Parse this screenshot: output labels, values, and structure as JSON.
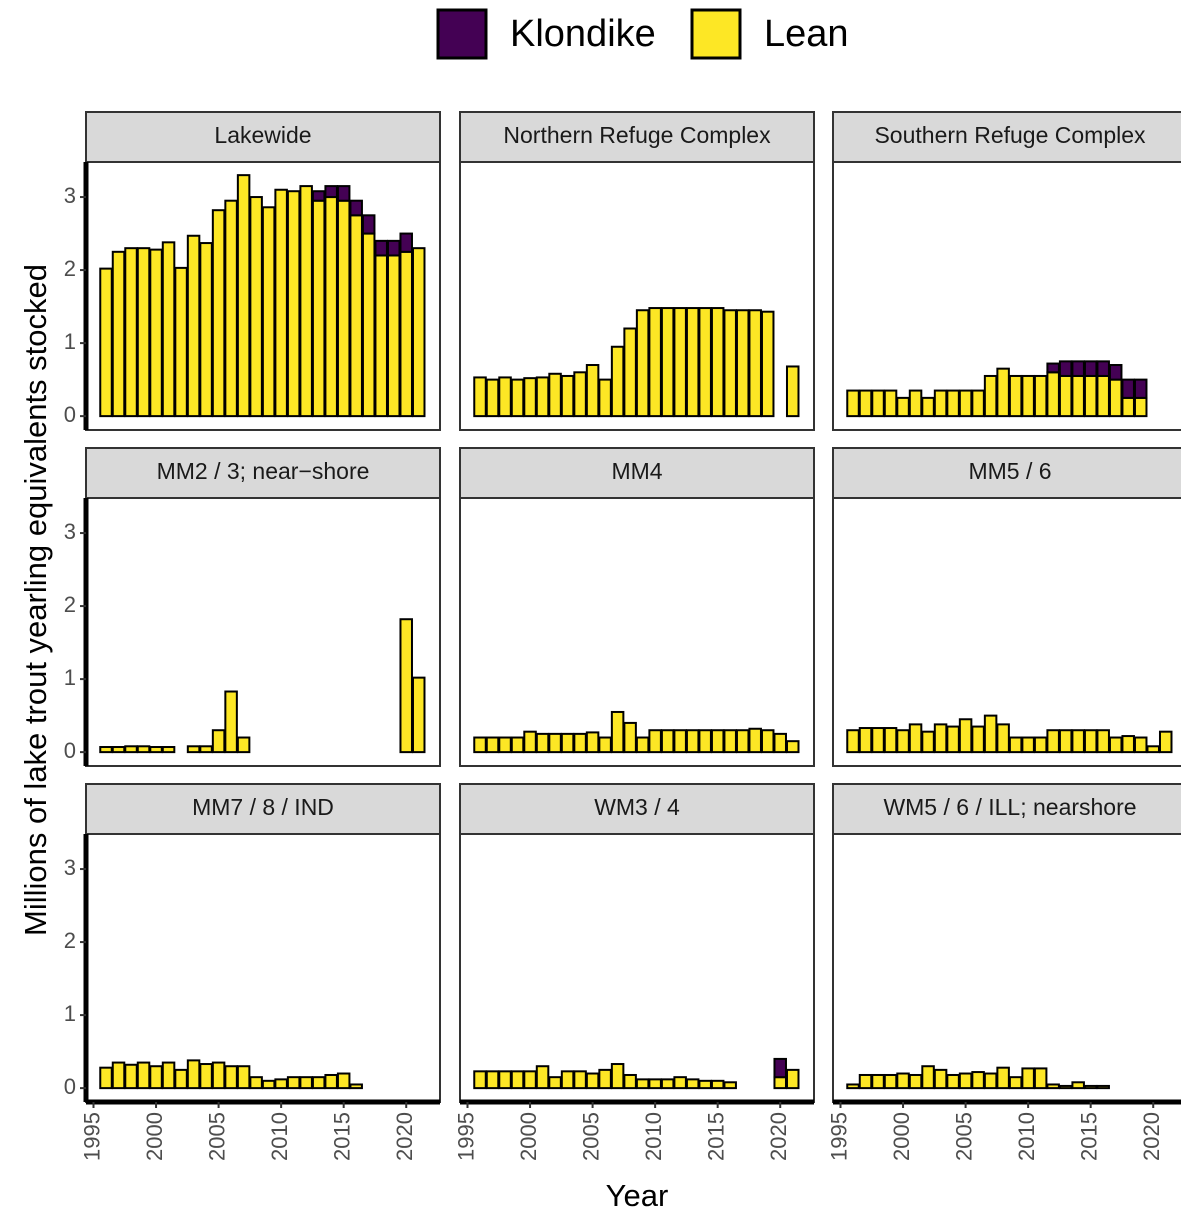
{
  "chart_data": {
    "type": "bar",
    "stacked": true,
    "y_label": "Millions of lake trout yearling equivalents stocked",
    "x_label": "Year",
    "x": [
      1996,
      1997,
      1998,
      1999,
      2000,
      2001,
      2002,
      2003,
      2004,
      2005,
      2006,
      2007,
      2008,
      2009,
      2010,
      2011,
      2012,
      2013,
      2014,
      2015,
      2016,
      2017,
      2018,
      2019,
      2020,
      2021
    ],
    "xlim": [
      1994.4,
      2022.7
    ],
    "xticks": [
      1995,
      2000,
      2005,
      2010,
      2015,
      2020
    ],
    "ylim": [
      -0.19,
      3.48
    ],
    "yticks": [
      0,
      1,
      2,
      3
    ],
    "series": [
      {
        "name": "Klondike",
        "color": "#440154"
      },
      {
        "name": "Lean",
        "color": "#fde725"
      }
    ],
    "panels": [
      {
        "title": "Lakewide",
        "values": [
          [
            null,
            null,
            null,
            null,
            null,
            null,
            null,
            null,
            null,
            null,
            null,
            null,
            null,
            null,
            null,
            null,
            null,
            0.13,
            0.15,
            0.2,
            0.2,
            0.25,
            0.2,
            0.2,
            0.25,
            null
          ],
          [
            2.02,
            2.25,
            2.3,
            2.3,
            2.28,
            2.38,
            2.03,
            2.47,
            2.37,
            2.82,
            2.95,
            3.3,
            3.0,
            2.86,
            3.1,
            3.08,
            3.15,
            2.95,
            3.0,
            2.95,
            2.75,
            2.5,
            2.2,
            2.2,
            2.25,
            2.3
          ]
        ]
      },
      {
        "title": "Northern Refuge Complex",
        "values": [
          [
            null,
            null,
            null,
            null,
            null,
            null,
            null,
            null,
            null,
            null,
            null,
            null,
            null,
            null,
            null,
            null,
            null,
            null,
            null,
            null,
            null,
            null,
            null,
            null,
            null,
            null
          ],
          [
            0.53,
            0.5,
            0.53,
            0.5,
            0.52,
            0.53,
            0.58,
            0.55,
            0.6,
            0.7,
            0.5,
            0.95,
            1.2,
            1.45,
            1.48,
            1.48,
            1.48,
            1.48,
            1.48,
            1.48,
            1.45,
            1.45,
            1.45,
            1.43,
            null,
            0.68
          ]
        ]
      },
      {
        "title": "Southern Refuge Complex",
        "values": [
          [
            null,
            null,
            null,
            null,
            null,
            null,
            null,
            null,
            null,
            null,
            null,
            null,
            null,
            null,
            null,
            null,
            0.12,
            0.2,
            0.2,
            0.2,
            0.2,
            0.2,
            0.25,
            0.25,
            null,
            null
          ],
          [
            0.35,
            0.35,
            0.35,
            0.35,
            0.25,
            0.35,
            0.25,
            0.35,
            0.35,
            0.35,
            0.35,
            0.55,
            0.65,
            0.55,
            0.55,
            0.55,
            0.6,
            0.55,
            0.55,
            0.55,
            0.55,
            0.5,
            0.25,
            0.25,
            null,
            null
          ]
        ]
      },
      {
        "title": "MM2 / 3; near−shore",
        "values": [
          [
            null,
            null,
            null,
            null,
            null,
            null,
            null,
            null,
            null,
            null,
            null,
            null,
            null,
            null,
            null,
            null,
            null,
            null,
            null,
            null,
            null,
            null,
            null,
            null,
            null,
            null
          ],
          [
            0.07,
            0.07,
            0.08,
            0.08,
            0.07,
            0.07,
            null,
            0.08,
            0.08,
            0.3,
            0.83,
            0.2,
            null,
            null,
            null,
            null,
            null,
            null,
            null,
            null,
            null,
            null,
            null,
            null,
            1.82,
            1.02
          ]
        ]
      },
      {
        "title": "MM4",
        "values": [
          [
            null,
            null,
            null,
            null,
            null,
            null,
            null,
            null,
            null,
            null,
            null,
            null,
            null,
            null,
            null,
            null,
            null,
            null,
            null,
            null,
            null,
            null,
            null,
            null,
            null,
            null
          ],
          [
            0.2,
            0.2,
            0.2,
            0.2,
            0.28,
            0.25,
            0.25,
            0.25,
            0.25,
            0.27,
            0.2,
            0.55,
            0.4,
            0.2,
            0.3,
            0.3,
            0.3,
            0.3,
            0.3,
            0.3,
            0.3,
            0.3,
            0.32,
            0.3,
            0.25,
            0.15
          ]
        ]
      },
      {
        "title": "MM5 / 6",
        "values": [
          [
            null,
            null,
            null,
            null,
            null,
            null,
            null,
            null,
            null,
            null,
            null,
            null,
            null,
            null,
            null,
            null,
            null,
            null,
            null,
            null,
            null,
            null,
            null,
            null,
            null,
            null
          ],
          [
            0.3,
            0.33,
            0.33,
            0.33,
            0.3,
            0.38,
            0.28,
            0.38,
            0.35,
            0.45,
            0.35,
            0.5,
            0.38,
            0.2,
            0.2,
            0.2,
            0.3,
            0.3,
            0.3,
            0.3,
            0.3,
            0.2,
            0.22,
            0.2,
            0.08,
            0.28
          ]
        ]
      },
      {
        "title": "MM7 / 8 / IND",
        "values": [
          [
            null,
            null,
            null,
            null,
            null,
            null,
            null,
            null,
            null,
            null,
            null,
            null,
            null,
            null,
            null,
            null,
            null,
            null,
            null,
            null,
            null,
            null,
            null,
            null,
            null,
            null
          ],
          [
            0.28,
            0.35,
            0.32,
            0.35,
            0.3,
            0.35,
            0.25,
            0.38,
            0.33,
            0.35,
            0.3,
            0.3,
            0.15,
            0.1,
            0.12,
            0.15,
            0.15,
            0.15,
            0.18,
            0.2,
            0.05,
            null,
            null,
            null,
            null,
            null
          ]
        ]
      },
      {
        "title": "WM3 / 4",
        "values": [
          [
            null,
            null,
            null,
            null,
            null,
            null,
            null,
            null,
            null,
            null,
            null,
            null,
            null,
            null,
            null,
            null,
            null,
            null,
            null,
            null,
            null,
            null,
            null,
            null,
            0.25,
            null
          ],
          [
            0.23,
            0.23,
            0.23,
            0.23,
            0.23,
            0.3,
            0.15,
            0.23,
            0.23,
            0.2,
            0.25,
            0.33,
            0.18,
            0.12,
            0.12,
            0.12,
            0.15,
            0.12,
            0.1,
            0.1,
            0.08,
            null,
            null,
            null,
            0.15,
            0.25
          ]
        ]
      },
      {
        "title": "WM5 / 6 / ILL; nearshore",
        "values": [
          [
            null,
            null,
            null,
            null,
            null,
            null,
            null,
            null,
            null,
            null,
            null,
            null,
            null,
            null,
            null,
            null,
            null,
            null,
            null,
            null,
            null,
            null,
            null,
            null,
            null,
            null
          ],
          [
            0.05,
            0.18,
            0.18,
            0.18,
            0.2,
            0.18,
            0.3,
            0.25,
            0.18,
            0.2,
            0.22,
            0.2,
            0.28,
            0.15,
            0.27,
            0.27,
            0.05,
            0.03,
            0.08,
            0.03,
            0.03,
            null,
            null,
            null,
            null,
            null
          ]
        ]
      }
    ]
  }
}
